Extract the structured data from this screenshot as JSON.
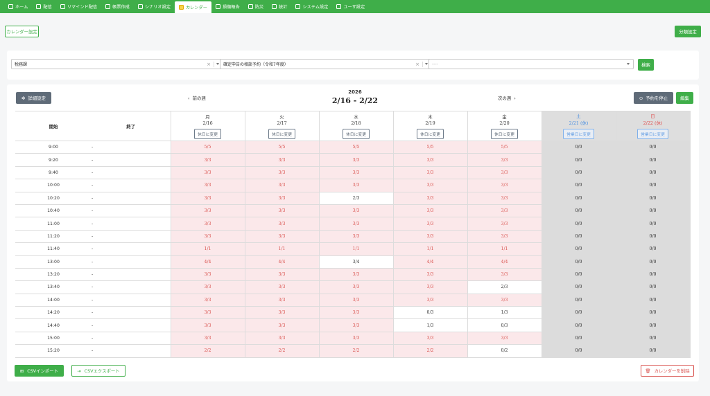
{
  "nav": [
    {
      "label": "ホーム",
      "icon": "home-icon",
      "active": false
    },
    {
      "label": "配信",
      "icon": "broadcast-icon",
      "active": false
    },
    {
      "label": "リマインド配信",
      "icon": "hand-icon",
      "active": false
    },
    {
      "label": "帳票作成",
      "icon": "form-icon",
      "active": false
    },
    {
      "label": "シナリオ設定",
      "icon": "scenario-icon",
      "active": false
    },
    {
      "label": "カレンダー",
      "icon": "calendar-icon",
      "active": true
    },
    {
      "label": "損傷報告",
      "icon": "report-icon",
      "active": false
    },
    {
      "label": "防災",
      "icon": "cloud-icon",
      "active": false
    },
    {
      "label": "統計",
      "icon": "pie-icon",
      "active": false
    },
    {
      "label": "システム設定",
      "icon": "gear-icon",
      "active": false
    },
    {
      "label": "ユーザ設定",
      "icon": "users-icon",
      "active": false
    }
  ],
  "toolbar": {
    "calendar_settings": "カレンダー設定",
    "category_settings": "分類設定"
  },
  "filters": {
    "department": "税務課",
    "calendar": "確定申告の相談予約（令和7年度）",
    "third": "----",
    "search": "検索"
  },
  "week": {
    "details": "詳細設定",
    "prev": "前の週",
    "next": "次の週",
    "year": "2026",
    "range": "2/16 - 2/22",
    "stop": "予約を停止",
    "edit": "編集"
  },
  "table": {
    "col_start": "開始",
    "col_end": "終了",
    "days": [
      {
        "dow": "月",
        "date": "2/16",
        "button": "休日に変更",
        "kind": "weekday"
      },
      {
        "dow": "火",
        "date": "2/17",
        "button": "休日に変更",
        "kind": "weekday"
      },
      {
        "dow": "水",
        "date": "2/18",
        "button": "休日に変更",
        "kind": "weekday"
      },
      {
        "dow": "木",
        "date": "2/19",
        "button": "休日に変更",
        "kind": "weekday"
      },
      {
        "dow": "金",
        "date": "2/20",
        "button": "休日に変更",
        "kind": "weekday"
      },
      {
        "dow": "土",
        "date": "2/21 (休)",
        "button": "営業日に変更",
        "kind": "sat"
      },
      {
        "dow": "日",
        "date": "2/22 (休)",
        "button": "営業日に変更",
        "kind": "sun"
      }
    ],
    "rows": [
      {
        "time": "9:00",
        "end": "-",
        "cells": [
          "5/5",
          "5/5",
          "5/5",
          "5/5",
          "5/5",
          "0/0",
          "0/0"
        ]
      },
      {
        "time": "9:20",
        "end": "-",
        "cells": [
          "3/3",
          "3/3",
          "3/3",
          "3/3",
          "3/3",
          "0/0",
          "0/0"
        ]
      },
      {
        "time": "9:40",
        "end": "-",
        "cells": [
          "3/3",
          "3/3",
          "3/3",
          "3/3",
          "3/3",
          "0/0",
          "0/0"
        ]
      },
      {
        "time": "10:00",
        "end": "-",
        "cells": [
          "3/3",
          "3/3",
          "3/3",
          "3/3",
          "3/3",
          "0/0",
          "0/0"
        ]
      },
      {
        "time": "10:20",
        "end": "-",
        "cells": [
          "3/3",
          "3/3",
          "2/3",
          "3/3",
          "3/3",
          "0/0",
          "0/0"
        ]
      },
      {
        "time": "10:40",
        "end": "-",
        "cells": [
          "3/3",
          "3/3",
          "3/3",
          "3/3",
          "3/3",
          "0/0",
          "0/0"
        ]
      },
      {
        "time": "11:00",
        "end": "-",
        "cells": [
          "3/3",
          "3/3",
          "3/3",
          "3/3",
          "3/3",
          "0/0",
          "0/0"
        ]
      },
      {
        "time": "11:20",
        "end": "-",
        "cells": [
          "3/3",
          "3/3",
          "3/3",
          "3/3",
          "3/3",
          "0/0",
          "0/0"
        ]
      },
      {
        "time": "11:40",
        "end": "-",
        "cells": [
          "1/1",
          "1/1",
          "1/1",
          "1/1",
          "1/1",
          "0/0",
          "0/0"
        ]
      },
      {
        "time": "13:00",
        "end": "-",
        "cells": [
          "4/4",
          "4/4",
          "3/4",
          "4/4",
          "4/4",
          "0/0",
          "0/0"
        ]
      },
      {
        "time": "13:20",
        "end": "-",
        "cells": [
          "3/3",
          "3/3",
          "3/3",
          "3/3",
          "3/3",
          "0/0",
          "0/0"
        ]
      },
      {
        "time": "13:40",
        "end": "-",
        "cells": [
          "3/3",
          "3/3",
          "3/3",
          "3/3",
          "2/3",
          "0/0",
          "0/0"
        ]
      },
      {
        "time": "14:00",
        "end": "-",
        "cells": [
          "3/3",
          "3/3",
          "3/3",
          "3/3",
          "3/3",
          "0/0",
          "0/0"
        ]
      },
      {
        "time": "14:20",
        "end": "-",
        "cells": [
          "3/3",
          "3/3",
          "3/3",
          "0/3",
          "1/3",
          "0/0",
          "0/0"
        ]
      },
      {
        "time": "14:40",
        "end": "-",
        "cells": [
          "3/3",
          "3/3",
          "3/3",
          "1/3",
          "0/3",
          "0/0",
          "0/0"
        ]
      },
      {
        "time": "15:00",
        "end": "-",
        "cells": [
          "3/3",
          "3/3",
          "3/3",
          "3/3",
          "3/3",
          "0/0",
          "0/0"
        ]
      },
      {
        "time": "15:20",
        "end": "-",
        "cells": [
          "2/2",
          "2/2",
          "2/2",
          "2/2",
          "0/2",
          "0/0",
          "0/0"
        ]
      }
    ]
  },
  "footer": {
    "csv_import": "CSVインポート",
    "csv_export": "CSVエクスポート",
    "delete": "カレンダーを削除"
  }
}
